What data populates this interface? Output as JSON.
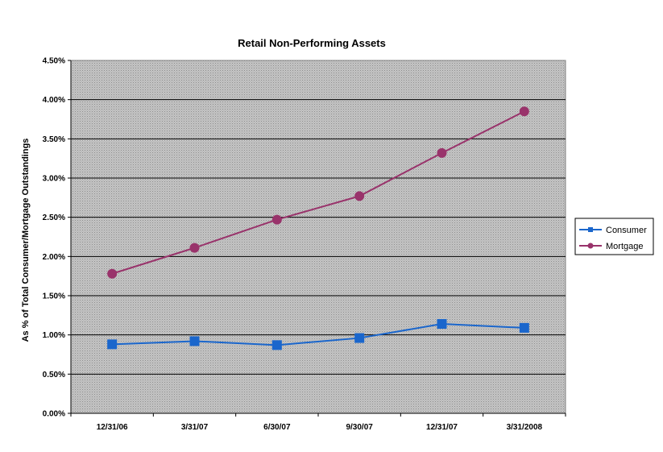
{
  "chart_data": {
    "type": "line",
    "title": "Retail Non-Performing Assets",
    "ylabel": "As % of Total Consumer/Mortgage Outstandings",
    "xlabel": "",
    "categories": [
      "12/31/06",
      "3/31/07",
      "6/30/07",
      "9/30/07",
      "12/31/07",
      "3/31/2008"
    ],
    "y_ticks": [
      "0.00%",
      "0.50%",
      "1.00%",
      "1.50%",
      "2.00%",
      "2.50%",
      "3.00%",
      "3.50%",
      "4.00%",
      "4.50%"
    ],
    "ylim": [
      0,
      4.5
    ],
    "grid": true,
    "legend_position": "right",
    "series": [
      {
        "name": "Consumer",
        "values": [
          0.88,
          0.92,
          0.87,
          0.96,
          1.14,
          1.09
        ],
        "color": "#1a66cc",
        "marker": "square"
      },
      {
        "name": "Mortgage",
        "values": [
          1.78,
          2.11,
          2.47,
          2.77,
          3.32,
          3.85
        ],
        "color": "#99336b",
        "marker": "circle"
      }
    ]
  }
}
